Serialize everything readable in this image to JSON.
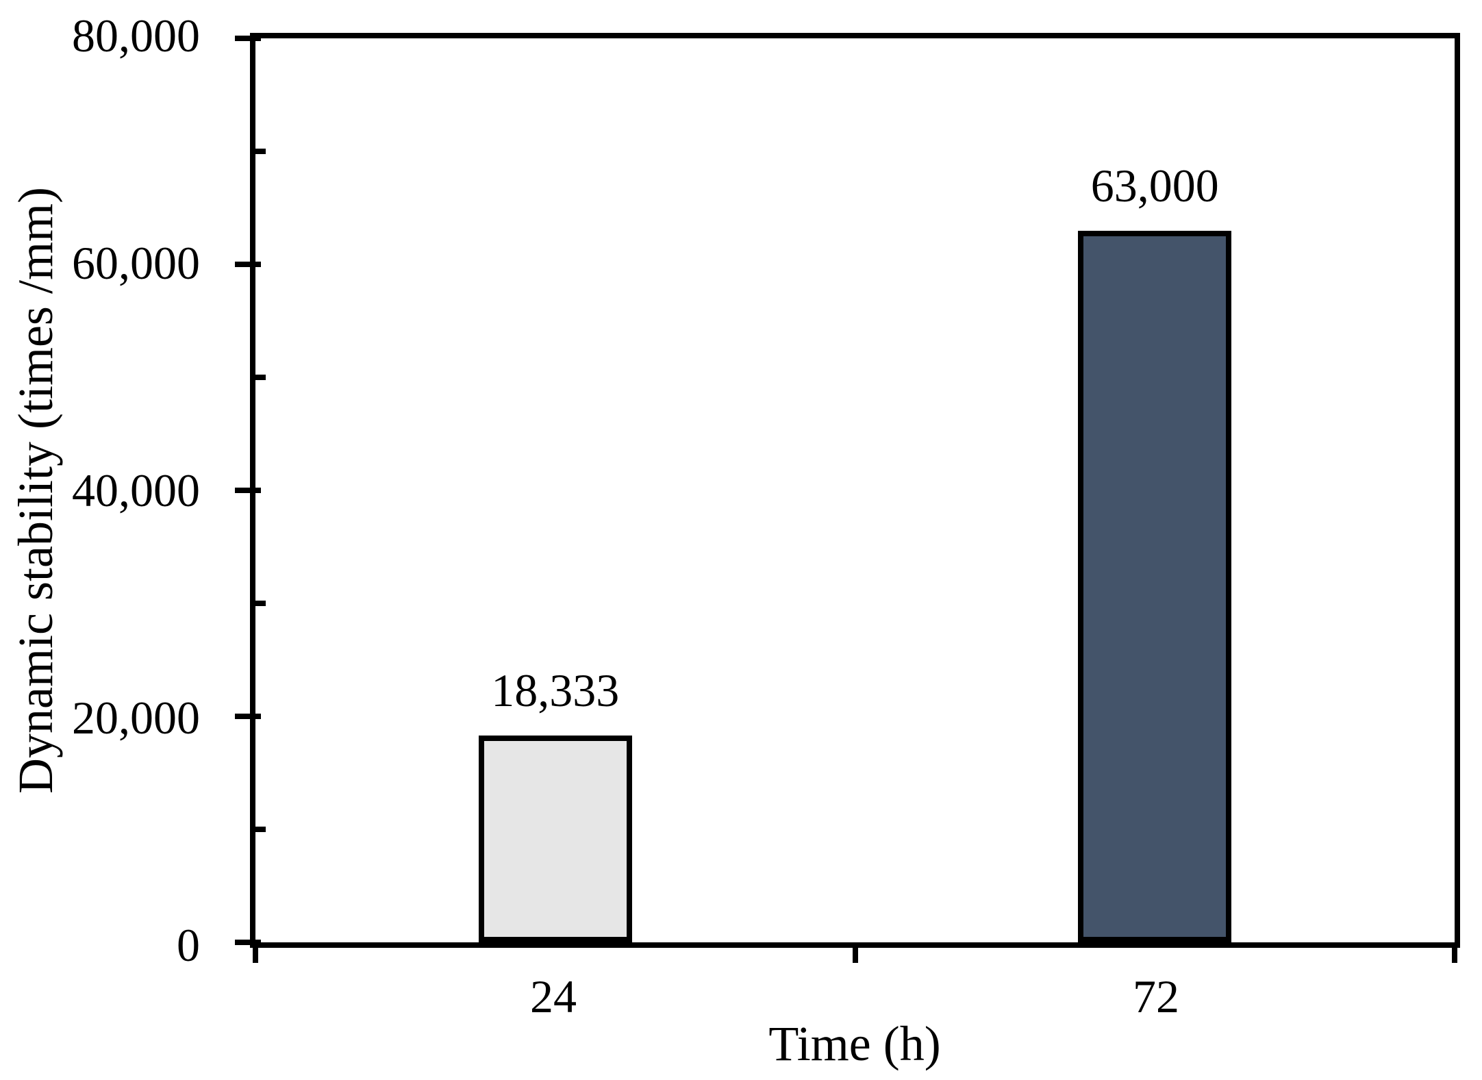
{
  "chart_data": {
    "type": "bar",
    "title": "",
    "xlabel": "Time (h)",
    "ylabel": "Dynamic stability (times /mm)",
    "categories": [
      "24",
      "72"
    ],
    "values": [
      18333,
      63000
    ],
    "value_labels": [
      "18,333",
      "63,000"
    ],
    "ylim": [
      0,
      80000
    ],
    "yticks": [
      0,
      20000,
      40000,
      60000,
      80000
    ],
    "ytick_labels": [
      "0",
      "20,000",
      "40,000",
      "60,000",
      "80,000"
    ],
    "minor_ytick_values": [
      10000,
      30000,
      50000,
      70000
    ],
    "grid": false,
    "legend": false,
    "bar_colors": [
      "#E6E6E6",
      "#44546A"
    ],
    "bar_border_color": "#000000",
    "axis_color": "#000000",
    "background_color": "#FFFFFF"
  }
}
